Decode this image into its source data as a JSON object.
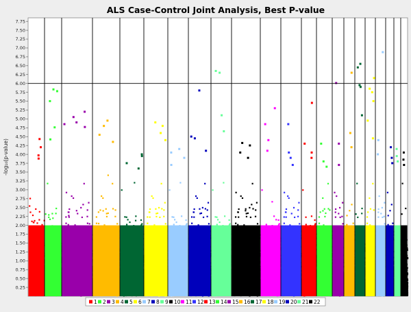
{
  "chart_data": {
    "type": "scatter",
    "title": "ALS Case-Control Joint Analysis, Best P-value",
    "xlabel": "",
    "ylabel": "-log₁₀(p-value)",
    "ylim": [
      0,
      7.85
    ],
    "yticks": [
      0.25,
      0.5,
      0.75,
      1.0,
      1.25,
      1.5,
      1.75,
      2.0,
      2.25,
      2.5,
      2.75,
      3.0,
      3.25,
      3.5,
      3.75,
      4.0,
      4.25,
      4.5,
      4.75,
      5.0,
      5.25,
      5.5,
      5.75,
      6.0,
      6.25,
      6.5,
      6.75,
      7.0,
      7.25,
      7.5,
      7.75
    ],
    "ytick_labels": [
      "0.25",
      "0.50",
      "0.75",
      "1.00",
      "1.25",
      "1.50",
      "1.75",
      "2.00",
      "2.25",
      "2.50",
      "2.75",
      "3.00",
      "3.25",
      "3.50",
      "3.75",
      "4.00",
      "4.25",
      "4.50",
      "4.75",
      "5.00",
      "5.25",
      "5.50",
      "5.75",
      "6.00",
      "6.25",
      "6.50",
      "6.75",
      "7.00",
      "7.25",
      "7.50",
      "7.75"
    ],
    "threshold": 6.0,
    "legend_position": "bottom",
    "grid": false,
    "series": [
      {
        "name": "1",
        "color": "#ff0000",
        "top": [
          4.43,
          4.2,
          3.97,
          3.88
        ]
      },
      {
        "name": "2",
        "color": "#33ff33",
        "top": [
          5.83,
          5.78,
          5.5,
          4.76,
          4.42
        ]
      },
      {
        "name": "3",
        "color": "#9900aa",
        "top": [
          5.2,
          5.05,
          4.9,
          4.85,
          4.77
        ]
      },
      {
        "name": "4",
        "color": "#ffbb00",
        "top": [
          4.95,
          4.8,
          4.55,
          4.35
        ]
      },
      {
        "name": "5",
        "color": "#006633",
        "top": [
          4.0,
          3.95,
          3.75,
          3.6
        ]
      },
      {
        "name": "6",
        "color": "#ffff00",
        "top": [
          4.9,
          4.8,
          4.6,
          4.4
        ]
      },
      {
        "name": "7",
        "color": "#99ccff",
        "top": [
          4.15,
          4.05,
          3.9,
          3.7
        ]
      },
      {
        "name": "8",
        "color": "#0000bb",
        "top": [
          5.8,
          4.5,
          4.45,
          4.1
        ]
      },
      {
        "name": "9",
        "color": "#66ff99",
        "top": [
          6.35,
          6.3,
          5.1,
          4.65
        ]
      },
      {
        "name": "10",
        "color": "#000000",
        "top": [
          4.32,
          4.25,
          4.05,
          3.9
        ]
      },
      {
        "name": "11",
        "color": "#ff00ff",
        "top": [
          5.3,
          4.85,
          4.4,
          4.1
        ]
      },
      {
        "name": "12",
        "color": "#3333ff",
        "top": [
          4.85,
          4.05,
          3.9,
          3.7
        ]
      },
      {
        "name": "13",
        "color": "#ff0000",
        "top": [
          5.45,
          4.3,
          4.05,
          3.9
        ]
      },
      {
        "name": "14",
        "color": "#33ff33",
        "top": [
          4.3,
          3.8,
          3.65
        ]
      },
      {
        "name": "15",
        "color": "#9900aa",
        "top": [
          6.01,
          4.3,
          3.7
        ]
      },
      {
        "name": "16",
        "color": "#ffbb00",
        "top": [
          6.3,
          4.6,
          4.2
        ]
      },
      {
        "name": "17",
        "color": "#006633",
        "top": [
          6.55,
          6.45,
          5.95,
          5.9,
          5.1
        ]
      },
      {
        "name": "18",
        "color": "#ffff00",
        "top": [
          6.15,
          5.85,
          5.75,
          5.5,
          4.95,
          4.45
        ]
      },
      {
        "name": "19",
        "color": "#99ccff",
        "top": [
          6.88,
          4.4,
          4.0
        ]
      },
      {
        "name": "20",
        "color": "#0000bb",
        "top": [
          4.2,
          3.9,
          3.75
        ]
      },
      {
        "name": "21",
        "color": "#66ff99",
        "top": [
          4.15,
          3.95,
          3.8
        ]
      },
      {
        "name": "22",
        "color": "#000000",
        "top": [
          4.05,
          3.85,
          3.7
        ]
      }
    ],
    "legend": [
      "1",
      "2",
      "3",
      "4",
      "5",
      "6",
      "7",
      "8",
      "9",
      "10",
      "11",
      "12",
      "13",
      "14",
      "15",
      "16",
      "17",
      "18",
      "19",
      "20",
      "21",
      "22"
    ]
  }
}
